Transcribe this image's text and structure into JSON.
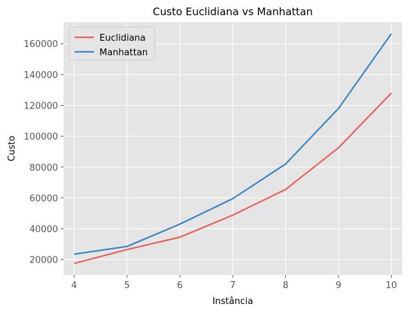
{
  "chart_data": {
    "type": "line",
    "title": "Custo Euclidiana vs Manhattan",
    "xlabel": "Instância",
    "ylabel": "Custo",
    "x": [
      4,
      5,
      6,
      7,
      8,
      9,
      10
    ],
    "xlim": [
      3.8,
      10.2
    ],
    "ylim": [
      10000,
      174000
    ],
    "xticks": [
      4,
      5,
      6,
      7,
      8,
      9,
      10
    ],
    "yticks": [
      20000,
      40000,
      60000,
      80000,
      100000,
      120000,
      140000,
      160000
    ],
    "grid": true,
    "legend_position": "top-left",
    "series": [
      {
        "name": "Euclidiana",
        "color": "#e8635e",
        "values": [
          17500,
          26500,
          34500,
          48800,
          65500,
          92500,
          128000
        ]
      },
      {
        "name": "Manhattan",
        "color": "#3a86bd",
        "values": [
          23500,
          28500,
          43000,
          59500,
          82000,
          118000,
          166500
        ]
      }
    ],
    "style": {
      "plot_background": "#e5e5e5",
      "grid_color": "#ffffff"
    }
  }
}
